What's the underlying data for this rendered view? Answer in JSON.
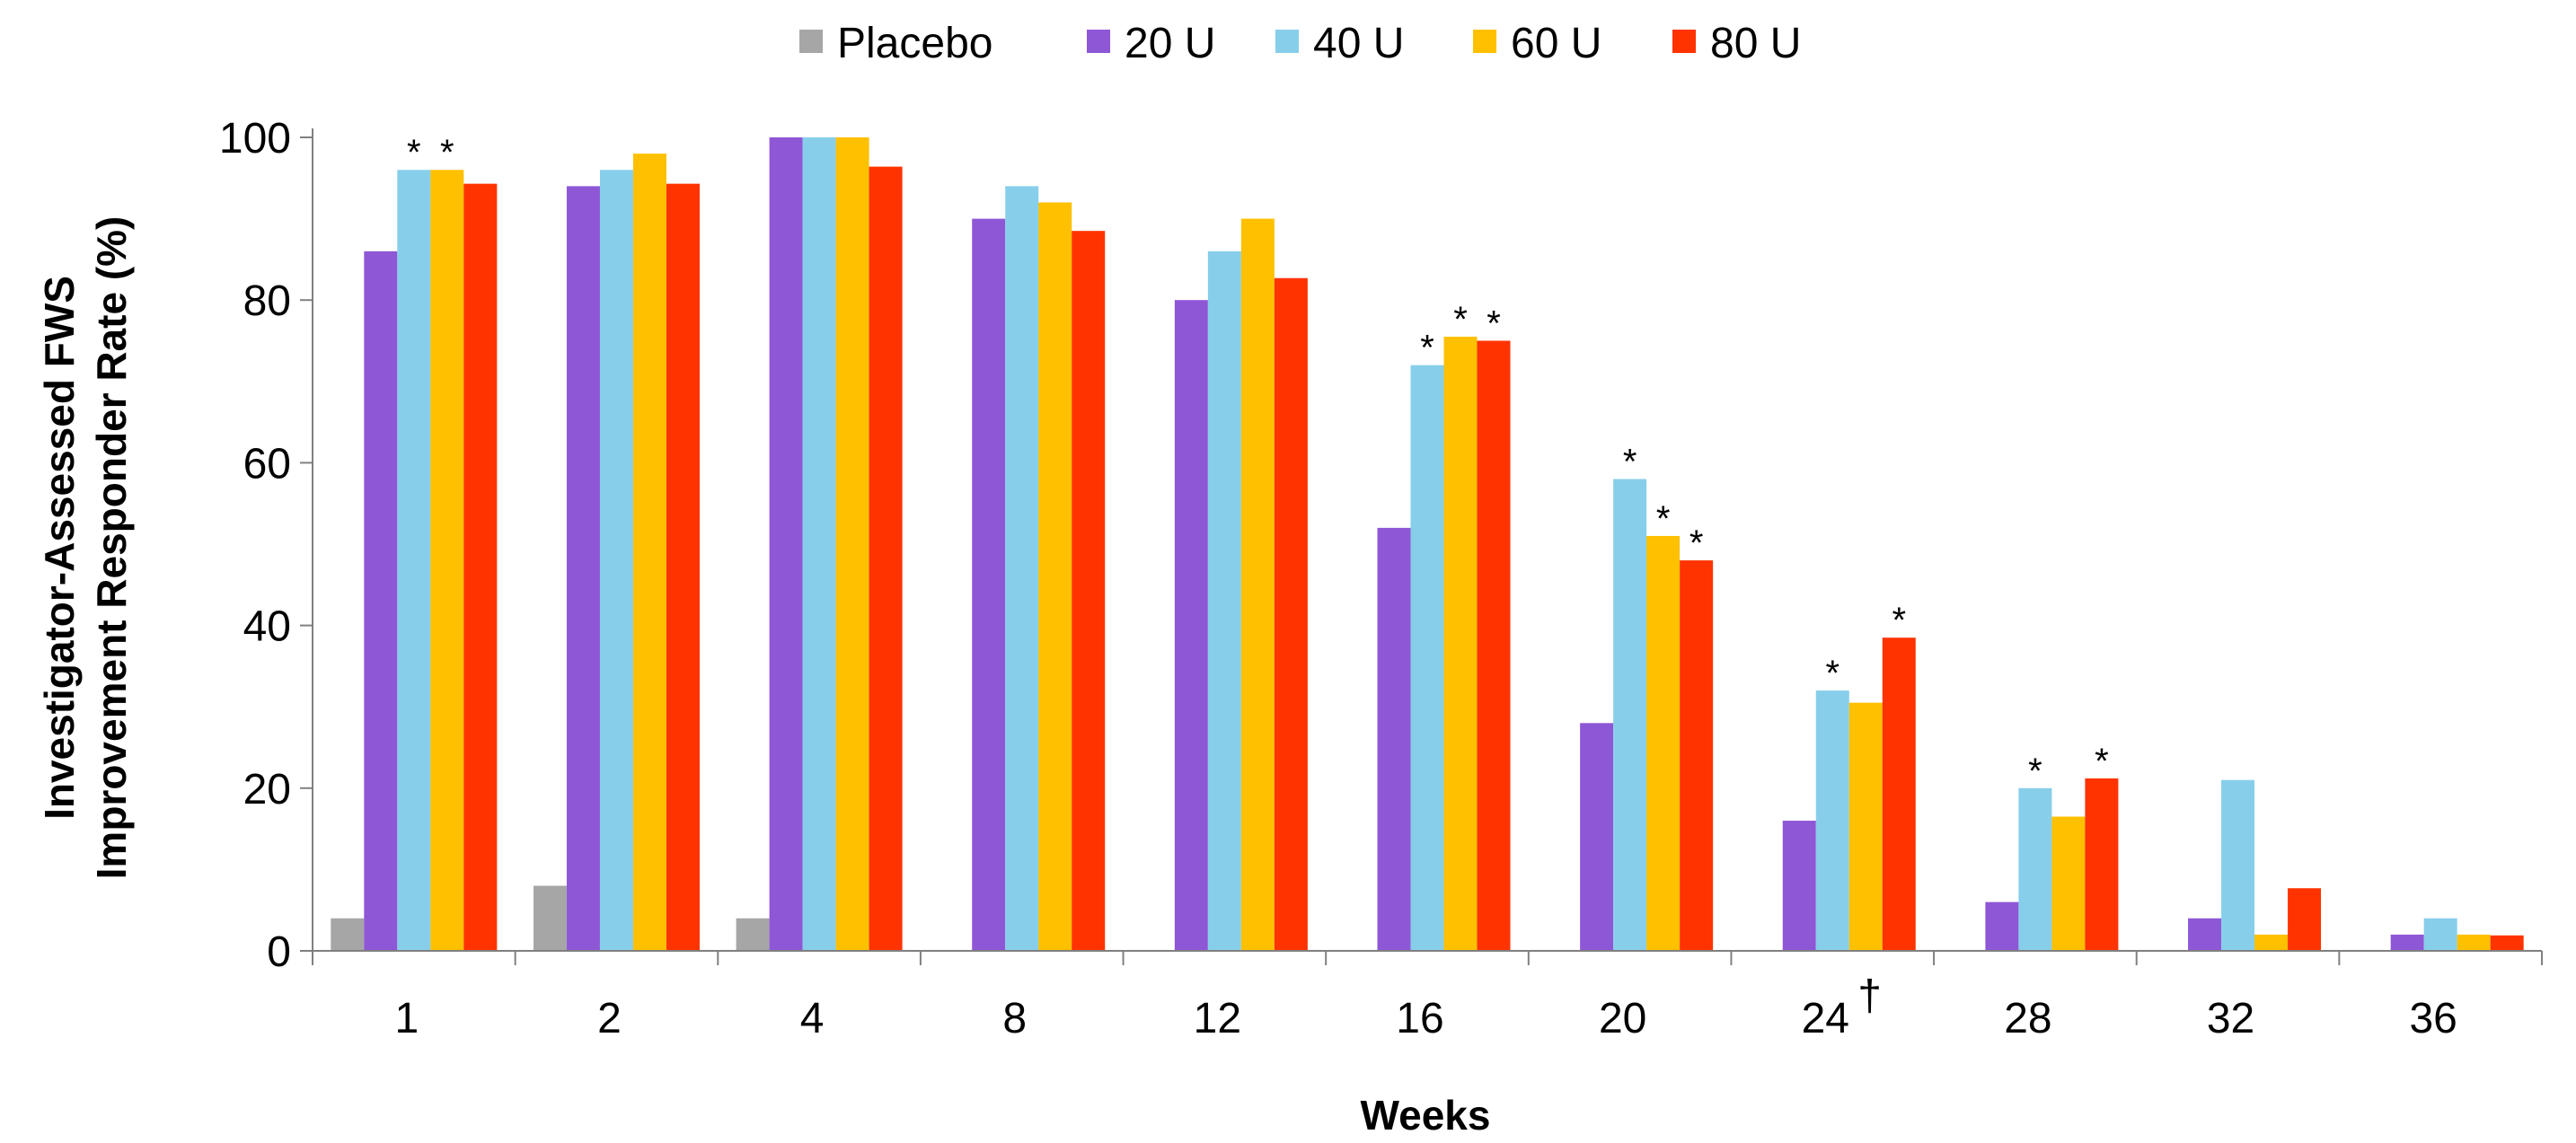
{
  "chart_data": {
    "type": "bar",
    "title": "",
    "xlabel": "Weeks",
    "ylabel_line1": "Investigator-Assessed FWS",
    "ylabel_line2": "Improvement Responder Rate (%)",
    "ylim": [
      0,
      100
    ],
    "yticks": [
      0,
      20,
      40,
      60,
      80,
      100
    ],
    "ytick_labels": [
      "0",
      "20",
      "40",
      "60",
      "80",
      "100"
    ],
    "legend_position": "top-center",
    "categories": [
      "1",
      "2",
      "4",
      "8",
      "12",
      "16",
      "20",
      "24",
      "28",
      "32",
      "36"
    ],
    "category_marks": [
      "",
      "",
      "",
      "",
      "",
      "",
      "",
      "†",
      "",
      "",
      ""
    ],
    "series": [
      {
        "name": "Placebo",
        "color": "#A6A6A6",
        "values": [
          4,
          8,
          4,
          null,
          null,
          null,
          null,
          null,
          null,
          null,
          null
        ]
      },
      {
        "name": "20 U",
        "color": "#8E57D6",
        "values": [
          86,
          94,
          100,
          90,
          80,
          52,
          28,
          16,
          6,
          4,
          2
        ]
      },
      {
        "name": "40 U",
        "color": "#87CEEB",
        "values": [
          96,
          96,
          100,
          94,
          86,
          72,
          58,
          32,
          20,
          21,
          4
        ]
      },
      {
        "name": "60 U",
        "color": "#FFC000",
        "values": [
          96,
          98,
          100,
          92,
          90,
          75.5,
          51,
          30.5,
          16.5,
          2,
          2
        ]
      },
      {
        "name": "80 U",
        "color": "#FF3300",
        "values": [
          94.3,
          94.3,
          96.4,
          88.5,
          82.7,
          75,
          48,
          38.5,
          21.2,
          7.7,
          1.9
        ]
      }
    ],
    "significance_marker": "*",
    "significance": [
      [
        false,
        false,
        false,
        false,
        false,
        false,
        false,
        false,
        false,
        false,
        false
      ],
      [
        false,
        false,
        false,
        false,
        false,
        false,
        false,
        false,
        false,
        false,
        false
      ],
      [
        true,
        false,
        false,
        false,
        false,
        true,
        true,
        true,
        true,
        false,
        false
      ],
      [
        true,
        false,
        false,
        false,
        false,
        true,
        true,
        false,
        false,
        false,
        false
      ],
      [
        false,
        false,
        false,
        false,
        false,
        true,
        true,
        true,
        true,
        false,
        false
      ]
    ]
  }
}
